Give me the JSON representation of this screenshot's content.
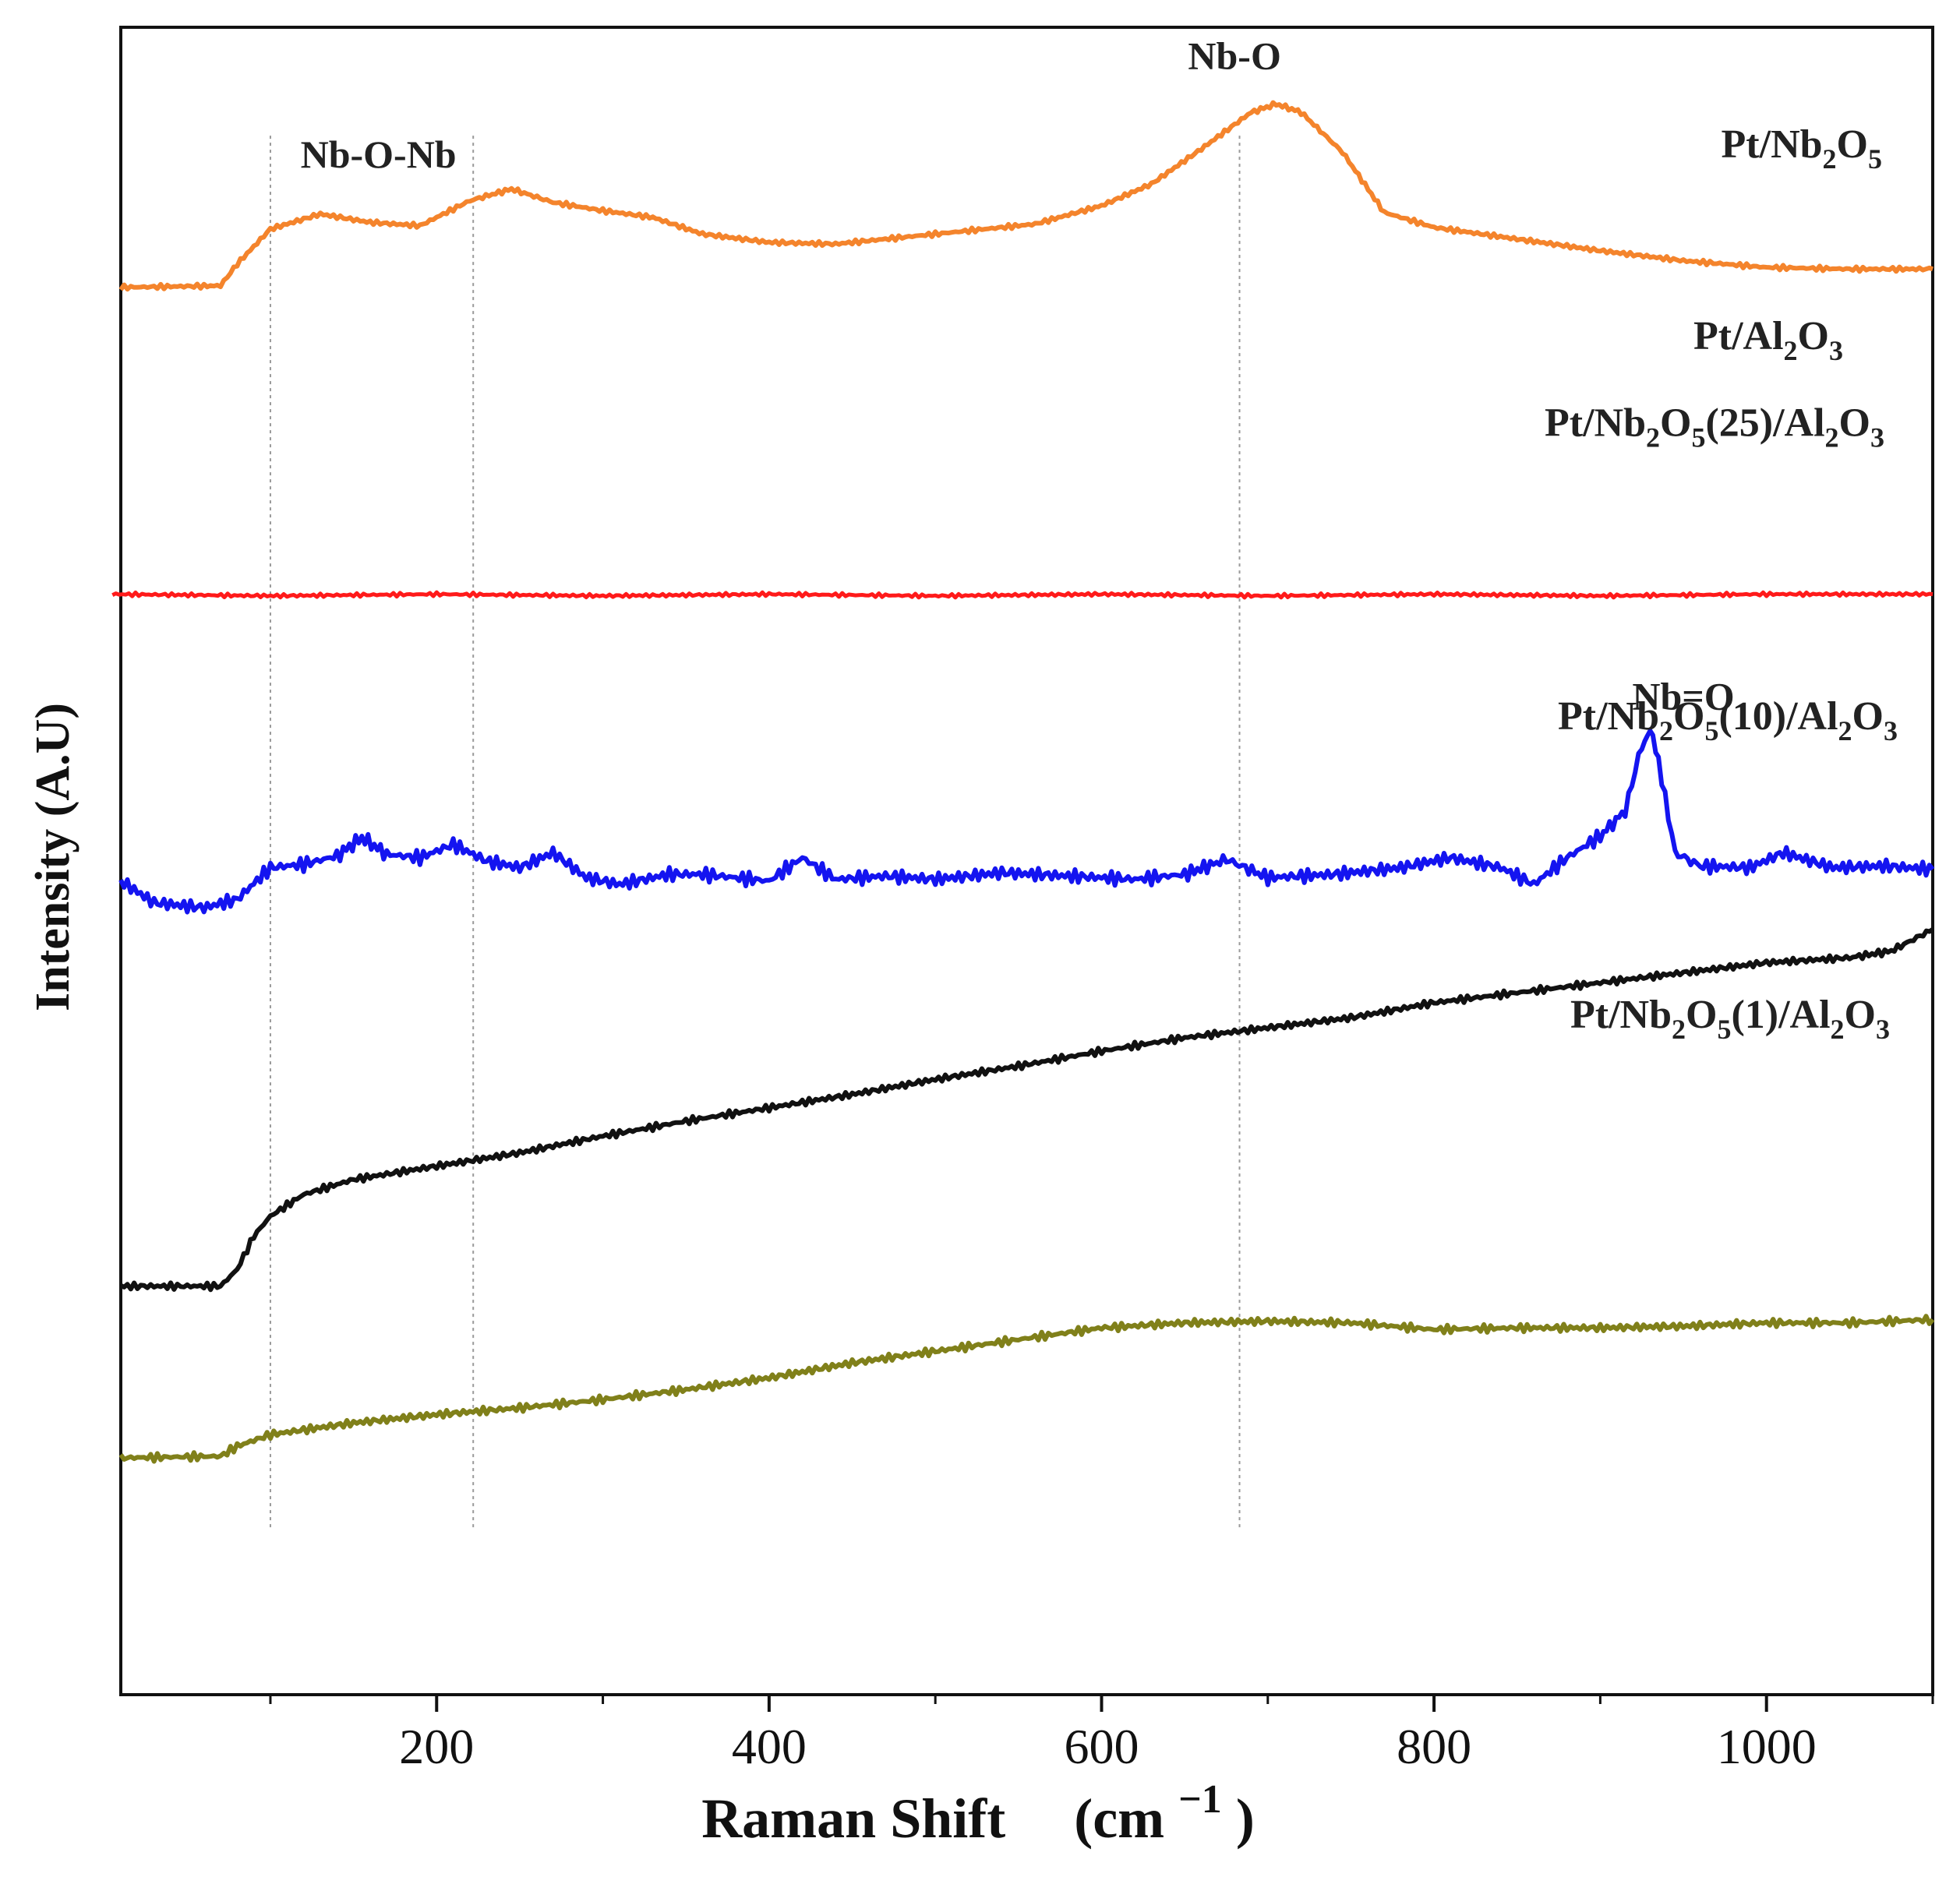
{
  "chart_data": {
    "type": "line",
    "title": "",
    "xlabel": "Raman Shift",
    "xlabel_unit": "(cm",
    "xlabel_unit_exp": "−1",
    "xlabel_unit_close": ")",
    "ylabel": "Intensity (A.U)",
    "xlim": [
      10,
      1100
    ],
    "ylim": [
      0,
      100
    ],
    "xticks": [
      200,
      400,
      600,
      800,
      1000
    ],
    "minor_xticks": [
      100,
      300,
      500,
      700,
      900,
      1100
    ],
    "yticks_shown": false,
    "grid": false,
    "legend": "inline labels at right of each trace",
    "reference_lines_x": [
      100,
      222,
      683
    ],
    "annotations": [
      {
        "text": "Nb-O-Nb",
        "x": 165,
        "y": 91.6
      },
      {
        "text": "Nb-O",
        "x": 680,
        "y": 97.5
      },
      {
        "text": "Nb=O",
        "x": 950,
        "y": 59.1
      }
    ],
    "series": [
      {
        "name": "Pt/Nb2O5",
        "label_parts": [
          [
            "Pt/Nb",
            ""
          ],
          [
            "2",
            "sub"
          ],
          [
            "O",
            ""
          ],
          [
            "5",
            "sub"
          ]
        ],
        "color": "#f4842c",
        "x": [
          10,
          70,
          80,
          100,
          130,
          160,
          190,
          220,
          245,
          270,
          300,
          330,
          360,
          400,
          440,
          480,
          520,
          560,
          600,
          630,
          660,
          690,
          705,
          720,
          745,
          770,
          800,
          850,
          900,
          950,
          1000,
          1050,
          1100
        ],
        "y": [
          84.4,
          84.5,
          85.8,
          87.9,
          88.8,
          88.3,
          88.1,
          89.6,
          90.3,
          89.5,
          89.0,
          88.6,
          87.6,
          87.1,
          87.0,
          87.4,
          87.8,
          88.2,
          89.3,
          90.6,
          92.7,
          94.9,
          95.4,
          94.9,
          92.5,
          88.9,
          88.0,
          87.3,
          86.6,
          86.0,
          85.6,
          85.5,
          85.5
        ]
      },
      {
        "name": "Pt/Al2O3",
        "label_parts": [
          [
            "Pt/Al",
            ""
          ],
          [
            "2",
            "sub"
          ],
          [
            "O",
            ""
          ],
          [
            "3",
            "sub"
          ]
        ],
        "color": "#ff1a1a",
        "x": [
          5,
          100,
          200,
          300,
          400,
          500,
          600,
          700,
          800,
          900,
          1000,
          1100
        ],
        "y": [
          66.0,
          65.9,
          66.0,
          65.9,
          66.0,
          65.9,
          66.0,
          65.9,
          66.0,
          65.9,
          66.0,
          66.0
        ]
      },
      {
        "name": "Pt/Nb2O5(25)/Al2O3",
        "label_parts": [
          [
            "Pt/Nb",
            ""
          ],
          [
            "2",
            "sub"
          ],
          [
            "O",
            ""
          ],
          [
            "5",
            "sub"
          ],
          [
            "(25)/Al",
            ""
          ],
          [
            "2",
            "sub"
          ],
          [
            "O",
            ""
          ],
          [
            "3",
            "sub"
          ]
        ],
        "color": "#1414f0",
        "x": [
          10,
          30,
          60,
          80,
          100,
          120,
          140,
          155,
          170,
          190,
          210,
          230,
          250,
          270,
          290,
          310,
          340,
          360,
          380,
          400,
          420,
          440,
          470,
          500,
          540,
          580,
          620,
          650,
          675,
          700,
          740,
          780,
          810,
          840,
          860,
          880,
          900,
          915,
          925,
          930,
          935,
          945,
          960,
          990,
          1010,
          1040,
          1070,
          1100
        ],
        "y": [
          48.8,
          47.5,
          47.2,
          47.7,
          49.6,
          49.8,
          50.3,
          51.4,
          50.4,
          50.2,
          51.0,
          50.0,
          49.6,
          50.5,
          49.0,
          48.6,
          49.2,
          49.2,
          49.0,
          48.8,
          50.2,
          48.9,
          49.1,
          48.9,
          49.3,
          49.1,
          48.9,
          49.2,
          50.1,
          49.0,
          49.2,
          49.6,
          50.2,
          49.6,
          48.6,
          50.2,
          51.5,
          53.0,
          57.0,
          57.8,
          56.0,
          50.5,
          49.7,
          49.6,
          50.5,
          49.6,
          49.7,
          49.5
        ]
      },
      {
        "name": "Pt/Nb2O5(10)/Al2O3",
        "label_parts": [
          [
            "Pt/Nb",
            ""
          ],
          [
            "2",
            "sub"
          ],
          [
            "O",
            ""
          ],
          [
            "5",
            "sub"
          ],
          [
            "(10)/Al",
            ""
          ],
          [
            "2",
            "sub"
          ],
          [
            "O",
            ""
          ],
          [
            "3",
            "sub"
          ]
        ],
        "color": "#111111",
        "x": [
          10,
          70,
          80,
          90,
          100,
          120,
          150,
          200,
          250,
          300,
          350,
          400,
          450,
          500,
          550,
          600,
          650,
          700,
          750,
          800,
          850,
          900,
          950,
          1000,
          1050,
          1075,
          1100
        ],
        "y": [
          24.5,
          24.5,
          25.5,
          27.5,
          28.7,
          30.0,
          30.9,
          31.7,
          32.5,
          33.5,
          34.4,
          35.2,
          36.0,
          36.9,
          37.7,
          38.6,
          39.4,
          40.0,
          40.6,
          41.5,
          42.1,
          42.7,
          43.3,
          43.9,
          44.2,
          44.6,
          45.9
        ]
      },
      {
        "name": "Pt/Nb2O5(1)/Al2O3",
        "label_parts": [
          [
            "Pt/Nb",
            ""
          ],
          [
            "2",
            "sub"
          ],
          [
            "O",
            ""
          ],
          [
            "5",
            "sub"
          ],
          [
            "(1)/Al",
            ""
          ],
          [
            "2",
            "sub"
          ],
          [
            "O",
            ""
          ],
          [
            "3",
            "sub"
          ]
        ],
        "color": "#80801a",
        "x": [
          10,
          70,
          80,
          100,
          150,
          200,
          250,
          300,
          350,
          400,
          450,
          500,
          550,
          600,
          650,
          700,
          750,
          800,
          850,
          900,
          950,
          1000,
          1050,
          1100
        ],
        "y": [
          14.2,
          14.3,
          14.9,
          15.6,
          16.3,
          16.8,
          17.2,
          17.7,
          18.3,
          19.0,
          19.9,
          20.6,
          21.3,
          22.0,
          22.3,
          22.4,
          22.3,
          21.9,
          22.0,
          22.0,
          22.1,
          22.3,
          22.3,
          22.5
        ]
      }
    ]
  }
}
